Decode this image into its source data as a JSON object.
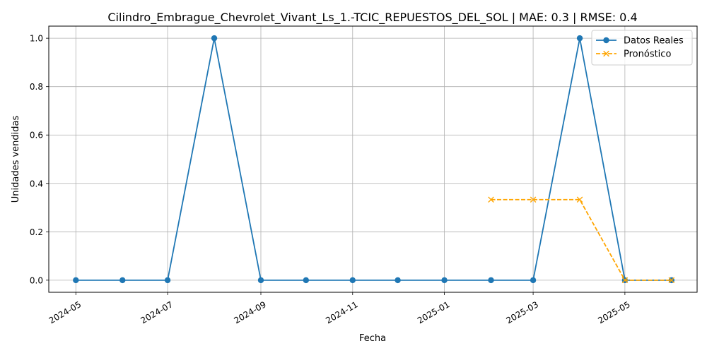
{
  "chart_data": {
    "type": "line",
    "title": "Cilindro_Embrague_Chevrolet_Vivant_Ls_1.-TCIC_REPUESTOS_DEL_SOL | MAE: 0.3 | RMSE: 0.4",
    "xlabel": "Fecha",
    "ylabel": "Unidades vendidas",
    "xlim": [
      "2024-04-13",
      "2025-06-18"
    ],
    "ylim": [
      -0.05,
      1.05
    ],
    "x_ticks": [
      "2024-05",
      "2024-07",
      "2024-09",
      "2024-11",
      "2025-01",
      "2025-03",
      "2025-05"
    ],
    "y_ticks": [
      "0.0",
      "0.2",
      "0.4",
      "0.6",
      "0.8",
      "1.0"
    ],
    "grid": true,
    "legend_position": "top-right",
    "series": [
      {
        "name": "Datos Reales",
        "style": "solid",
        "marker": "circle",
        "color": "#1f77b4",
        "x": [
          "2024-05-01",
          "2024-06-01",
          "2024-07-01",
          "2024-08-01",
          "2024-09-01",
          "2024-10-01",
          "2024-11-01",
          "2024-12-01",
          "2025-01-01",
          "2025-02-01",
          "2025-03-01",
          "2025-04-01",
          "2025-05-01",
          "2025-06-01"
        ],
        "y": [
          0,
          0,
          0,
          1,
          0,
          0,
          0,
          0,
          0,
          0,
          0,
          1,
          0,
          0
        ]
      },
      {
        "name": "Pronóstico",
        "style": "dashed",
        "marker": "x",
        "color": "#ffa500",
        "x": [
          "2025-02-01",
          "2025-03-01",
          "2025-04-01",
          "2025-05-01",
          "2025-06-01"
        ],
        "y": [
          0.333,
          0.333,
          0.333,
          0,
          0
        ]
      }
    ]
  }
}
